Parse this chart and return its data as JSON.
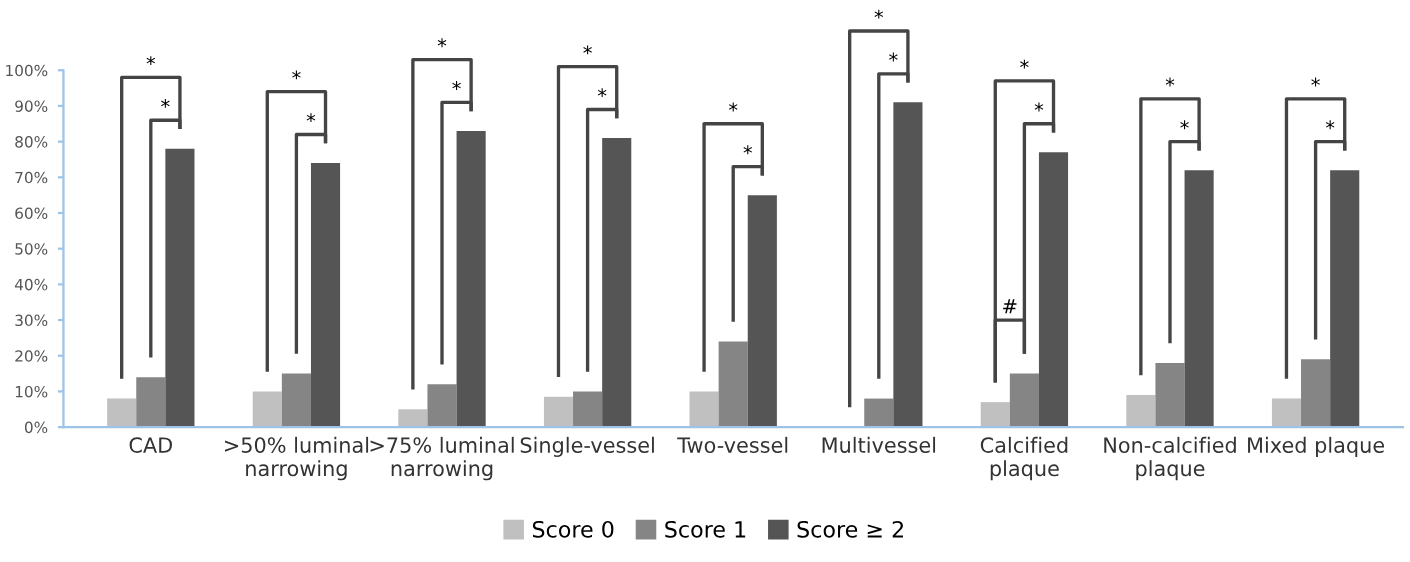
{
  "chart_data": {
    "type": "bar",
    "categories": [
      "CAD",
      ">50% luminal\nnarrowing",
      ">75% luminal\nnarrowing",
      "Single-vessel",
      "Two-vessel",
      "Multivessel",
      "Calcified\nplaque",
      "Non-calcified\nplaque",
      "Mixed plaque"
    ],
    "series": [
      {
        "name": "Score 0",
        "color": "#c0c0c0",
        "values": [
          8,
          10,
          5,
          8.5,
          10,
          0,
          7,
          9,
          8
        ]
      },
      {
        "name": "Score 1",
        "color": "#858585",
        "values": [
          14,
          15,
          12,
          10,
          24,
          8,
          15,
          18,
          19
        ]
      },
      {
        "name": "Score ≥ 2",
        "color": "#555555",
        "values": [
          78,
          74,
          83,
          81,
          65,
          91,
          77,
          72,
          72
        ]
      }
    ],
    "ylim": [
      0,
      100
    ],
    "yticks": [
      {
        "value": 0,
        "label": "0%"
      },
      {
        "value": 10,
        "label": "10%"
      },
      {
        "value": 20,
        "label": "20%"
      },
      {
        "value": 30,
        "label": "30%"
      },
      {
        "value": 40,
        "label": "40%"
      },
      {
        "value": 50,
        "label": "50%"
      },
      {
        "value": 60,
        "label": "60%"
      },
      {
        "value": 70,
        "label": "70%"
      },
      {
        "value": 80,
        "label": "80%"
      },
      {
        "value": 90,
        "label": "90%"
      },
      {
        "value": 100,
        "label": "100%"
      }
    ],
    "legend": "bottom",
    "grid": false,
    "annotations": [
      "*",
      "*",
      "*",
      "*",
      "*",
      "*",
      "*",
      "*",
      "*",
      "*",
      "*",
      "*",
      "*",
      "*",
      "#",
      "*",
      "*",
      "*",
      "*"
    ]
  }
}
